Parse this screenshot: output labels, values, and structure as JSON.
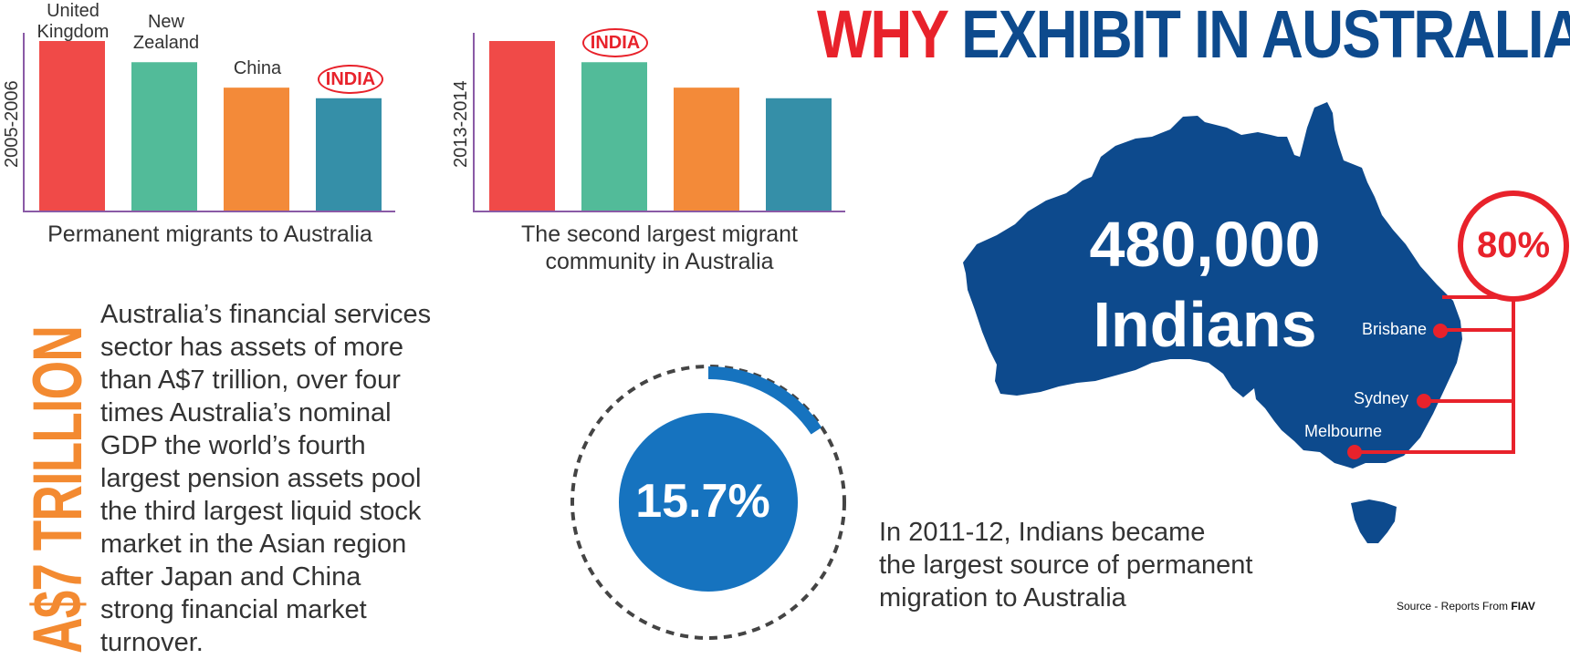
{
  "title": {
    "part1": "WHY",
    "part2": "EXHIBIT IN AUSTRALIA ?"
  },
  "chart1": {
    "year_label": "2005-2006",
    "caption": "Permanent migrants to Australia",
    "bars": [
      {
        "label_line1": "United",
        "label_line2": "Kingdom",
        "color": "#f04a48"
      },
      {
        "label_line1": "New",
        "label_line2": "Zealand",
        "color": "#52bb99"
      },
      {
        "label_line1": "China",
        "label_line2": "",
        "color": "#f38a39"
      },
      {
        "label_line1": "INDIA",
        "label_line2": "",
        "color": "#358fa8"
      }
    ]
  },
  "chart2": {
    "year_label": "2013-2014",
    "caption_line1": "The second largest migrant",
    "caption_line2": "community in Australia",
    "highlight_label": "INDIA"
  },
  "chart_data": [
    {
      "type": "bar",
      "categories": [
        "United Kingdom",
        "New Zealand",
        "China",
        "INDIA"
      ],
      "values": [
        4,
        3.5,
        2.9,
        2.65
      ],
      "ylabel": "2005-2006",
      "xlabel": "Permanent migrants to Australia",
      "colors": [
        "#f04a48",
        "#52bb99",
        "#f38a39",
        "#358fa8"
      ]
    },
    {
      "type": "bar",
      "categories": [
        "",
        "INDIA",
        "",
        ""
      ],
      "values": [
        4,
        3.5,
        2.9,
        2.65
      ],
      "ylabel": "2013-2014",
      "xlabel": "The second largest migrant community in Australia",
      "colors": [
        "#f04a48",
        "#52bb99",
        "#f38a39",
        "#358fa8"
      ]
    }
  ],
  "trillion": {
    "label": "A$7 TRILLION"
  },
  "paragraph": {
    "lines": [
      "Australia’s financial services",
      "sector has assets of more",
      "than A$7 trillion, over four",
      "times Australia’s nominal",
      "GDP the world’s fourth",
      "largest pension assets pool",
      "the third largest liquid stock",
      "market in the Asian region",
      "after Japan and China",
      "strong financial market",
      "turnover."
    ]
  },
  "donut": {
    "value_label": "15.7%",
    "fraction": 0.157,
    "color": "#1673bf"
  },
  "bottom_text": {
    "lines": [
      "In 2011-12, Indians became",
      "the largest source of permanent",
      "migration to Australia"
    ]
  },
  "map": {
    "count": "480,000",
    "people": "Indians",
    "percent": "80%",
    "cities": [
      "Brisbane",
      "Sydney",
      "Melbourne"
    ],
    "map_color": "#0d4a8d",
    "accent_color": "#e8222b"
  },
  "source": {
    "prefix": "Source - Reports From ",
    "org": "FIAV"
  }
}
